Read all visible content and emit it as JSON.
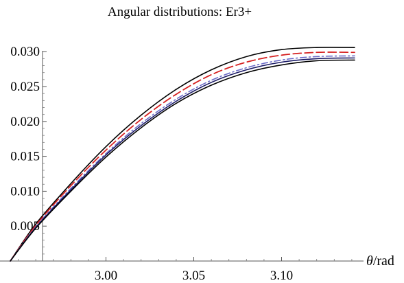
{
  "chart_data": {
    "type": "line",
    "title": "Angular distributions: Er3+",
    "xlabel_symbol": "θ",
    "xlabel_unit": "/rad",
    "ylabel": "",
    "xlim": [
      2.9455,
      3.1416
    ],
    "ylim": [
      0.0,
      0.0315
    ],
    "x_ticks": [
      3.0,
      3.05,
      3.1
    ],
    "x_tick_labels": [
      "3.00",
      "3.05",
      "3.10"
    ],
    "y_ticks": [
      0.005,
      0.01,
      0.015,
      0.02,
      0.025,
      0.03
    ],
    "y_tick_labels": [
      "0.005",
      "0.010",
      "0.015",
      "0.020",
      "0.025",
      "0.030"
    ],
    "grid": false,
    "legend": "none",
    "series": [
      {
        "color": "#000000",
        "dash": "solid",
        "x": [
          2.9455,
          2.96,
          2.98,
          3.0,
          3.02,
          3.04,
          3.06,
          3.08,
          3.1,
          3.12,
          3.1416
        ],
        "values": [
          0.0,
          0.0053,
          0.0111,
          0.0164,
          0.0209,
          0.0246,
          0.0274,
          0.0293,
          0.0303,
          0.0306,
          0.0306
        ]
      },
      {
        "color": "#d62020",
        "dash": "dashed",
        "x": [
          2.9455,
          2.96,
          2.98,
          3.0,
          3.02,
          3.04,
          3.06,
          3.08,
          3.1,
          3.12,
          3.1416
        ],
        "values": [
          0.0,
          0.0051,
          0.0108,
          0.0159,
          0.0203,
          0.0239,
          0.0267,
          0.0285,
          0.0295,
          0.0299,
          0.0299
        ]
      },
      {
        "color": "#6b6bc8",
        "dash": "dash-dot",
        "x": [
          2.9455,
          2.96,
          2.98,
          3.0,
          3.02,
          3.04,
          3.06,
          3.08,
          3.1,
          3.12,
          3.1416
        ],
        "values": [
          0.0,
          0.0049,
          0.0104,
          0.0154,
          0.0197,
          0.0232,
          0.0259,
          0.0277,
          0.0288,
          0.0293,
          0.0294
        ]
      },
      {
        "color": "#1a1a66",
        "dash": "solid",
        "x": [
          2.9455,
          2.96,
          2.98,
          3.0,
          3.02,
          3.04,
          3.06,
          3.08,
          3.1,
          3.12,
          3.1416
        ],
        "values": [
          0.0,
          0.0048,
          0.0102,
          0.0152,
          0.0194,
          0.0229,
          0.0256,
          0.0274,
          0.0285,
          0.029,
          0.0291
        ]
      },
      {
        "color": "#000000",
        "dash": "solid",
        "x": [
          2.9455,
          2.96,
          2.98,
          3.0,
          3.02,
          3.04,
          3.06,
          3.08,
          3.1,
          3.12,
          3.1416
        ],
        "values": [
          0.0,
          0.0047,
          0.01,
          0.0149,
          0.0191,
          0.0226,
          0.0252,
          0.027,
          0.0281,
          0.0287,
          0.0288
        ]
      }
    ]
  }
}
